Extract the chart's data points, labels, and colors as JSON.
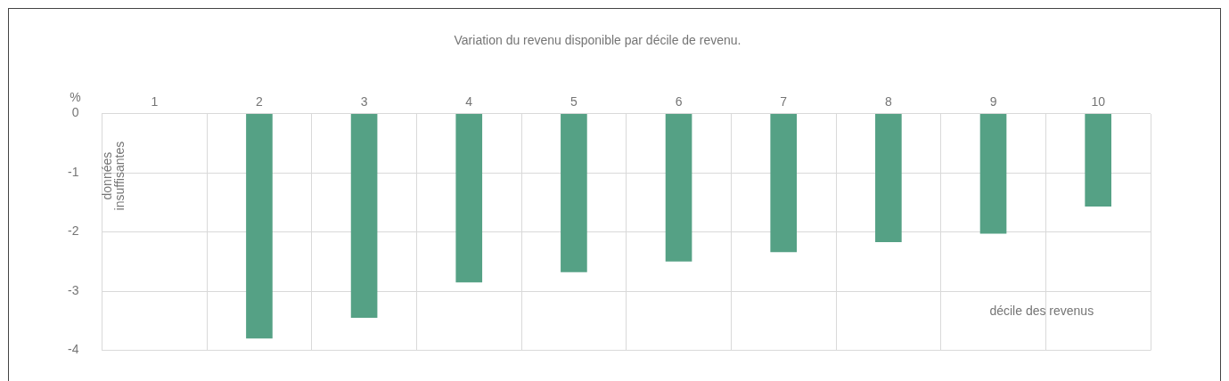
{
  "chart_data": {
    "type": "bar",
    "title": "Variation du revenu disponible par décile de revenu.",
    "xlabel": "décile des revenus",
    "ylabel": "%",
    "categories": [
      "1",
      "2",
      "3",
      "4",
      "5",
      "6",
      "7",
      "8",
      "9",
      "10"
    ],
    "values": [
      null,
      -3.8,
      -3.45,
      -2.85,
      -2.68,
      -2.5,
      -2.34,
      -2.17,
      -2.03,
      -1.57
    ],
    "color": "#55a185",
    "ylim": [
      -4,
      0
    ],
    "yticks": [
      0,
      -1,
      -2,
      -3,
      -4
    ],
    "grid": true,
    "annotations": [
      "données insuffisantes"
    ]
  }
}
